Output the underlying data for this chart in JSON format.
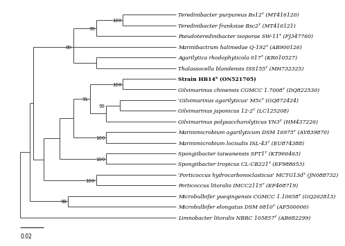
{
  "scale_bar_label": "0.02",
  "background_color": "#ffffff",
  "line_color": "#444444",
  "text_color": "#000000",
  "font_size": 5.5,
  "bs_font_size": 5.0,
  "lw": 0.7,
  "taxa": [
    {
      "name": "Teredinibacter purpureus Bs12ᵀ (MT416120)",
      "y": 20,
      "italic": true,
      "bold": false
    },
    {
      "name": "Teredinibacter franksiae Bsc2ᵀ (MT416121)",
      "y": 19,
      "italic": true,
      "bold": false
    },
    {
      "name": "Pseudoteredinibacter isoporae SW-11ᵀ (FJ347760)",
      "y": 18,
      "italic": true,
      "bold": false
    },
    {
      "name": "Marinibactrum halimedae Q-192ᵀ (AB900126)",
      "y": 17,
      "italic": true,
      "bold": false
    },
    {
      "name": "Agarilytica rhodophyticola 017ᵀ (KR610527)",
      "y": 16,
      "italic": true,
      "bold": false
    },
    {
      "name": "Thalassocella blandensis ISS155ᵀ (MH732325)",
      "y": 15,
      "italic": true,
      "bold": false
    },
    {
      "name": "Strain HB14ᵀ (ON521705)",
      "y": 14,
      "italic": false,
      "bold": true
    },
    {
      "name": "Gilvimarinus chinensis CGMCC 1.7008ᵀ (DQ822530)",
      "y": 13,
      "italic": true,
      "bold": false
    },
    {
      "name": "'Gilvimarinus agarilyticus' M5cᵀ (GQ872424)",
      "y": 12,
      "italic": true,
      "bold": false
    },
    {
      "name": "Gilvimarinus japonicus 12-2ᵀ (LC125208)",
      "y": 11,
      "italic": true,
      "bold": false
    },
    {
      "name": "Gilvimarinus polysaccharolyticus YN3ᵀ (HM437226)",
      "y": 10,
      "italic": true,
      "bold": false
    },
    {
      "name": "Marinimicrobium agarilyticum DSM 16975ᵀ (AY839870)",
      "y": 9,
      "italic": true,
      "bold": false
    },
    {
      "name": "Marinimicrobium locisalis ISL-43ᵀ (EU874388)",
      "y": 8,
      "italic": true,
      "bold": false
    },
    {
      "name": "Spongiibacter taiwanensis SPT1ᵀ (KT966463)",
      "y": 7,
      "italic": true,
      "bold": false
    },
    {
      "name": "Spongiibacter tropicus CL-CB221ᵀ (EF988653)",
      "y": 6,
      "italic": true,
      "bold": false
    },
    {
      "name": "'Porticoccus hydrocarbonoclasticus' MCTG13dᵀ (JN088732)",
      "y": 5,
      "italic": true,
      "bold": false
    },
    {
      "name": "Porticoccus litoralis IMCC2115ᵀ (EF468719)",
      "y": 4,
      "italic": true,
      "bold": false
    },
    {
      "name": "Microbulbifer yueqingensis CGMCC 1.10658ᵀ (GQ262813)",
      "y": 3,
      "italic": true,
      "bold": false
    },
    {
      "name": "Microbulbifer elongatus DSM 6810ᵀ (AF500006)",
      "y": 2,
      "italic": true,
      "bold": false
    },
    {
      "name": "Limnobacter litoralis NBRC 105857ᵀ (AB682299)",
      "y": 1,
      "italic": true,
      "bold": false
    }
  ]
}
